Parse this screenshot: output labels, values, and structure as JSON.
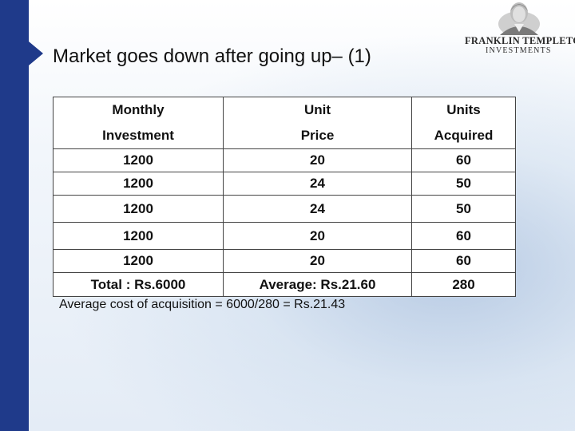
{
  "slide": {
    "title": "Market goes down after going up– (1)",
    "accent_color": "#1f3a8a"
  },
  "logo": {
    "line1": "FRANKLIN TEMPLETON",
    "line2": "INVESTMENTS",
    "icon": "benjamin-franklin-portrait-icon"
  },
  "table": {
    "headers": [
      [
        "Monthly",
        "Investment"
      ],
      [
        "Unit",
        "Price"
      ],
      [
        "Units",
        "Acquired"
      ]
    ],
    "rows": [
      [
        "1200",
        "20",
        "60"
      ],
      [
        "1200",
        "24",
        "50"
      ],
      [
        "1200",
        "24",
        "50"
      ],
      [
        "1200",
        "20",
        "60"
      ],
      [
        "1200",
        "20",
        "60"
      ]
    ],
    "total": [
      "Total : Rs.6000",
      "Average: Rs.21.60",
      "280"
    ]
  },
  "note": "Average cost of acquisition = 6000/280 = Rs.21.43"
}
